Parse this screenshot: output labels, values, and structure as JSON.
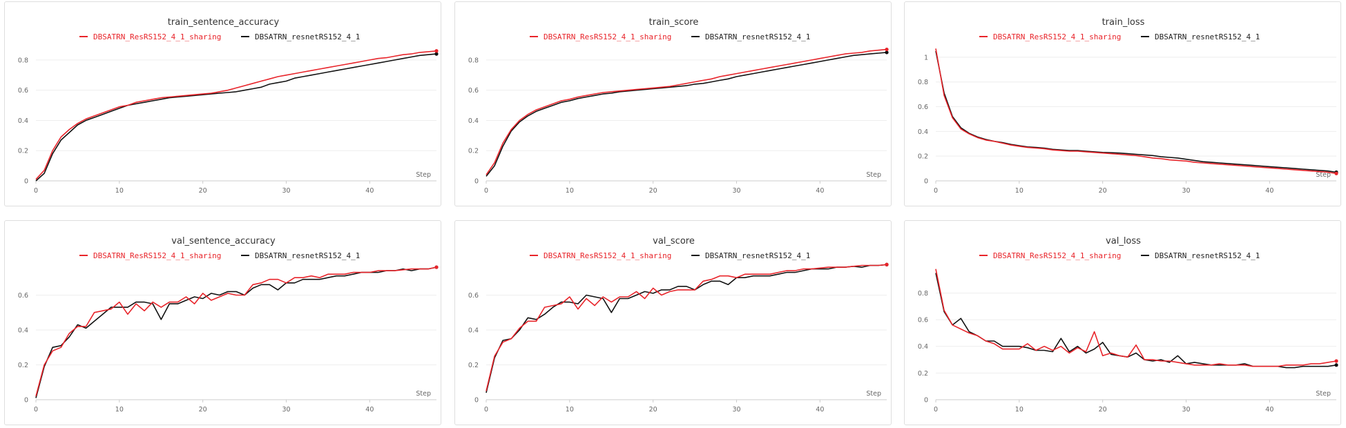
{
  "chart_data": [
    {
      "type": "line",
      "title": "train_sentence_accuracy",
      "xlabel": "Step",
      "xlim": [
        0,
        48
      ],
      "ylim": [
        0,
        0.9
      ],
      "xticks": [
        0,
        10,
        20,
        30,
        40
      ],
      "yticks": [
        0,
        0.2,
        0.4,
        0.6,
        0.8
      ],
      "grid": true,
      "legend": "top-center",
      "x": [
        0,
        1,
        2,
        3,
        4,
        5,
        6,
        7,
        8,
        9,
        10,
        11,
        12,
        13,
        14,
        15,
        16,
        17,
        18,
        19,
        20,
        21,
        22,
        23,
        24,
        25,
        26,
        27,
        28,
        29,
        30,
        31,
        32,
        33,
        34,
        35,
        36,
        37,
        38,
        39,
        40,
        41,
        42,
        43,
        44,
        45,
        46,
        47,
        48
      ],
      "series": [
        {
          "name": "DBSATRN_ResRS152_4_1_sharing",
          "color": "#e8242a",
          "values": [
            0.01,
            0.07,
            0.2,
            0.29,
            0.34,
            0.38,
            0.41,
            0.43,
            0.45,
            0.47,
            0.49,
            0.5,
            0.52,
            0.53,
            0.54,
            0.55,
            0.555,
            0.56,
            0.565,
            0.57,
            0.575,
            0.58,
            0.59,
            0.6,
            0.615,
            0.63,
            0.645,
            0.66,
            0.675,
            0.69,
            0.7,
            0.71,
            0.72,
            0.73,
            0.74,
            0.75,
            0.76,
            0.77,
            0.78,
            0.79,
            0.8,
            0.81,
            0.815,
            0.825,
            0.835,
            0.84,
            0.85,
            0.855,
            0.86
          ]
        },
        {
          "name": "DBSATRN_resnetRS152_4_1",
          "color": "#111111",
          "values": [
            0.0,
            0.05,
            0.18,
            0.27,
            0.32,
            0.37,
            0.4,
            0.42,
            0.44,
            0.46,
            0.48,
            0.5,
            0.51,
            0.52,
            0.53,
            0.54,
            0.55,
            0.555,
            0.56,
            0.565,
            0.57,
            0.575,
            0.58,
            0.585,
            0.59,
            0.6,
            0.61,
            0.62,
            0.64,
            0.65,
            0.66,
            0.68,
            0.69,
            0.7,
            0.71,
            0.72,
            0.73,
            0.74,
            0.75,
            0.76,
            0.77,
            0.78,
            0.79,
            0.8,
            0.81,
            0.82,
            0.83,
            0.835,
            0.84
          ]
        }
      ]
    },
    {
      "type": "line",
      "title": "train_score",
      "xlabel": "Step",
      "xlim": [
        0,
        48
      ],
      "ylim": [
        0,
        0.9
      ],
      "xticks": [
        0,
        10,
        20,
        30,
        40
      ],
      "yticks": [
        0,
        0.2,
        0.4,
        0.6,
        0.8
      ],
      "grid": true,
      "legend": "top-center",
      "x": [
        0,
        1,
        2,
        3,
        4,
        5,
        6,
        7,
        8,
        9,
        10,
        11,
        12,
        13,
        14,
        15,
        16,
        17,
        18,
        19,
        20,
        21,
        22,
        23,
        24,
        25,
        26,
        27,
        28,
        29,
        30,
        31,
        32,
        33,
        34,
        35,
        36,
        37,
        38,
        39,
        40,
        41,
        42,
        43,
        44,
        45,
        46,
        47,
        48
      ],
      "series": [
        {
          "name": "DBSATRN_ResRS152_4_1_sharing",
          "color": "#e8242a",
          "values": [
            0.04,
            0.12,
            0.25,
            0.34,
            0.4,
            0.44,
            0.47,
            0.49,
            0.51,
            0.53,
            0.54,
            0.555,
            0.565,
            0.575,
            0.585,
            0.59,
            0.595,
            0.6,
            0.605,
            0.61,
            0.615,
            0.62,
            0.625,
            0.635,
            0.645,
            0.655,
            0.665,
            0.675,
            0.69,
            0.7,
            0.71,
            0.72,
            0.73,
            0.74,
            0.75,
            0.76,
            0.77,
            0.78,
            0.79,
            0.8,
            0.81,
            0.82,
            0.83,
            0.84,
            0.845,
            0.85,
            0.86,
            0.865,
            0.87
          ]
        },
        {
          "name": "DBSATRN_resnetRS152_4_1",
          "color": "#111111",
          "values": [
            0.03,
            0.1,
            0.23,
            0.33,
            0.39,
            0.43,
            0.46,
            0.48,
            0.5,
            0.52,
            0.53,
            0.545,
            0.555,
            0.565,
            0.575,
            0.58,
            0.59,
            0.595,
            0.6,
            0.605,
            0.61,
            0.615,
            0.62,
            0.625,
            0.63,
            0.64,
            0.645,
            0.655,
            0.665,
            0.675,
            0.69,
            0.7,
            0.71,
            0.72,
            0.73,
            0.74,
            0.75,
            0.76,
            0.77,
            0.78,
            0.79,
            0.8,
            0.81,
            0.82,
            0.83,
            0.835,
            0.84,
            0.845,
            0.85
          ]
        }
      ]
    },
    {
      "type": "line",
      "title": "train_loss",
      "xlabel": "Step",
      "xlim": [
        0,
        48
      ],
      "ylim": [
        0,
        1.1
      ],
      "xticks": [
        0,
        10,
        20,
        30,
        40
      ],
      "yticks": [
        0,
        0.2,
        0.4,
        0.6,
        0.8,
        1
      ],
      "grid": true,
      "legend": "top-center",
      "x": [
        0,
        1,
        2,
        3,
        4,
        5,
        6,
        7,
        8,
        9,
        10,
        11,
        12,
        13,
        14,
        15,
        16,
        17,
        18,
        19,
        20,
        21,
        22,
        23,
        24,
        25,
        26,
        27,
        28,
        29,
        30,
        31,
        32,
        33,
        34,
        35,
        36,
        37,
        38,
        39,
        40,
        41,
        42,
        43,
        44,
        45,
        46,
        47,
        48
      ],
      "series": [
        {
          "name": "DBSATRN_ResRS152_4_1_sharing",
          "color": "#e8242a",
          "values": [
            1.07,
            0.69,
            0.51,
            0.42,
            0.38,
            0.35,
            0.33,
            0.32,
            0.305,
            0.29,
            0.28,
            0.27,
            0.265,
            0.26,
            0.25,
            0.245,
            0.24,
            0.24,
            0.235,
            0.23,
            0.225,
            0.22,
            0.215,
            0.21,
            0.205,
            0.195,
            0.185,
            0.18,
            0.17,
            0.165,
            0.16,
            0.15,
            0.145,
            0.14,
            0.135,
            0.13,
            0.125,
            0.12,
            0.115,
            0.11,
            0.105,
            0.1,
            0.095,
            0.09,
            0.085,
            0.08,
            0.075,
            0.07,
            0.06
          ]
        },
        {
          "name": "DBSATRN_resnetRS152_4_1",
          "color": "#111111",
          "values": [
            1.05,
            0.71,
            0.52,
            0.43,
            0.385,
            0.355,
            0.335,
            0.32,
            0.31,
            0.295,
            0.285,
            0.275,
            0.27,
            0.265,
            0.255,
            0.25,
            0.245,
            0.245,
            0.24,
            0.235,
            0.23,
            0.228,
            0.225,
            0.22,
            0.215,
            0.21,
            0.205,
            0.195,
            0.19,
            0.185,
            0.175,
            0.165,
            0.155,
            0.15,
            0.145,
            0.14,
            0.135,
            0.13,
            0.125,
            0.12,
            0.115,
            0.11,
            0.105,
            0.1,
            0.095,
            0.09,
            0.085,
            0.08,
            0.07
          ]
        }
      ]
    },
    {
      "type": "line",
      "title": "val_sentence_accuracy",
      "xlabel": "Step",
      "xlim": [
        0,
        48
      ],
      "ylim": [
        0,
        0.78
      ],
      "xticks": [
        0,
        10,
        20,
        30,
        40
      ],
      "yticks": [
        0,
        0.2,
        0.4,
        0.6
      ],
      "grid": true,
      "legend": "top-center",
      "x": [
        0,
        1,
        2,
        3,
        4,
        5,
        6,
        7,
        8,
        9,
        10,
        11,
        12,
        13,
        14,
        15,
        16,
        17,
        18,
        19,
        20,
        21,
        22,
        23,
        24,
        25,
        26,
        27,
        28,
        29,
        30,
        31,
        32,
        33,
        34,
        35,
        36,
        37,
        38,
        39,
        40,
        41,
        42,
        43,
        44,
        45,
        46,
        47,
        48
      ],
      "series": [
        {
          "name": "DBSATRN_ResRS152_4_1_sharing",
          "color": "#e8242a",
          "values": [
            0.02,
            0.2,
            0.28,
            0.3,
            0.38,
            0.42,
            0.42,
            0.5,
            0.51,
            0.52,
            0.56,
            0.49,
            0.55,
            0.51,
            0.56,
            0.53,
            0.56,
            0.56,
            0.59,
            0.55,
            0.61,
            0.57,
            0.59,
            0.61,
            0.6,
            0.6,
            0.66,
            0.67,
            0.69,
            0.69,
            0.67,
            0.7,
            0.7,
            0.71,
            0.7,
            0.72,
            0.72,
            0.72,
            0.73,
            0.73,
            0.73,
            0.74,
            0.74,
            0.74,
            0.745,
            0.75,
            0.75,
            0.75,
            0.76
          ]
        },
        {
          "name": "DBSATRN_resnetRS152_4_1",
          "color": "#111111",
          "values": [
            0.01,
            0.19,
            0.3,
            0.31,
            0.36,
            0.43,
            0.41,
            0.45,
            0.49,
            0.53,
            0.53,
            0.53,
            0.56,
            0.56,
            0.55,
            0.46,
            0.55,
            0.55,
            0.57,
            0.59,
            0.58,
            0.61,
            0.6,
            0.62,
            0.62,
            0.6,
            0.64,
            0.66,
            0.66,
            0.63,
            0.67,
            0.67,
            0.69,
            0.69,
            0.69,
            0.7,
            0.71,
            0.71,
            0.72,
            0.73,
            0.73,
            0.73,
            0.74,
            0.74,
            0.75,
            0.74,
            0.75,
            0.75,
            0.76
          ]
        }
      ]
    },
    {
      "type": "line",
      "title": "val_score",
      "xlabel": "Step",
      "xlim": [
        0,
        48
      ],
      "ylim": [
        0,
        0.78
      ],
      "xticks": [
        0,
        10,
        20,
        30,
        40
      ],
      "yticks": [
        0,
        0.2,
        0.4,
        0.6
      ],
      "grid": true,
      "legend": "top-center",
      "x": [
        0,
        1,
        2,
        3,
        4,
        5,
        6,
        7,
        8,
        9,
        10,
        11,
        12,
        13,
        14,
        15,
        16,
        17,
        18,
        19,
        20,
        21,
        22,
        23,
        24,
        25,
        26,
        27,
        28,
        29,
        30,
        31,
        32,
        33,
        34,
        35,
        36,
        37,
        38,
        39,
        40,
        41,
        42,
        43,
        44,
        45,
        46,
        47,
        48
      ],
      "series": [
        {
          "name": "DBSATRN_ResRS152_4_1_sharing",
          "color": "#e8242a",
          "values": [
            0.05,
            0.25,
            0.33,
            0.35,
            0.41,
            0.45,
            0.45,
            0.53,
            0.54,
            0.55,
            0.59,
            0.52,
            0.58,
            0.54,
            0.59,
            0.56,
            0.59,
            0.59,
            0.62,
            0.58,
            0.64,
            0.6,
            0.62,
            0.63,
            0.63,
            0.63,
            0.68,
            0.69,
            0.71,
            0.71,
            0.7,
            0.72,
            0.72,
            0.72,
            0.72,
            0.73,
            0.74,
            0.74,
            0.75,
            0.75,
            0.755,
            0.76,
            0.76,
            0.76,
            0.765,
            0.77,
            0.77,
            0.77,
            0.775
          ]
        },
        {
          "name": "DBSATRN_resnetRS152_4_1",
          "color": "#111111",
          "values": [
            0.04,
            0.24,
            0.34,
            0.35,
            0.4,
            0.47,
            0.46,
            0.49,
            0.53,
            0.56,
            0.56,
            0.55,
            0.6,
            0.59,
            0.58,
            0.5,
            0.58,
            0.58,
            0.6,
            0.62,
            0.61,
            0.63,
            0.63,
            0.65,
            0.65,
            0.63,
            0.66,
            0.68,
            0.68,
            0.66,
            0.7,
            0.7,
            0.71,
            0.71,
            0.71,
            0.72,
            0.73,
            0.73,
            0.74,
            0.75,
            0.75,
            0.75,
            0.76,
            0.76,
            0.765,
            0.76,
            0.77,
            0.77,
            0.775
          ]
        }
      ]
    },
    {
      "type": "line",
      "title": "val_loss",
      "xlabel": "Step",
      "xlim": [
        0,
        48
      ],
      "ylim": [
        0,
        1.02
      ],
      "xticks": [
        0,
        10,
        20,
        30,
        40
      ],
      "yticks": [
        0,
        0.2,
        0.4,
        0.6,
        0.8
      ],
      "grid": true,
      "legend": "top-center",
      "x": [
        0,
        1,
        2,
        3,
        4,
        5,
        6,
        7,
        8,
        9,
        10,
        11,
        12,
        13,
        14,
        15,
        16,
        17,
        18,
        19,
        20,
        21,
        22,
        23,
        24,
        25,
        26,
        27,
        28,
        29,
        30,
        31,
        32,
        33,
        34,
        35,
        36,
        37,
        38,
        39,
        40,
        41,
        42,
        43,
        44,
        45,
        46,
        47,
        48
      ],
      "series": [
        {
          "name": "DBSATRN_ResRS152_4_1_sharing",
          "color": "#e8242a",
          "values": [
            0.98,
            0.67,
            0.56,
            0.53,
            0.5,
            0.48,
            0.44,
            0.42,
            0.38,
            0.38,
            0.38,
            0.42,
            0.37,
            0.4,
            0.37,
            0.4,
            0.35,
            0.39,
            0.36,
            0.51,
            0.33,
            0.35,
            0.33,
            0.32,
            0.41,
            0.3,
            0.3,
            0.29,
            0.29,
            0.28,
            0.27,
            0.26,
            0.26,
            0.26,
            0.27,
            0.26,
            0.26,
            0.26,
            0.25,
            0.25,
            0.25,
            0.25,
            0.26,
            0.26,
            0.26,
            0.27,
            0.27,
            0.28,
            0.29
          ]
        },
        {
          "name": "DBSATRN_resnetRS152_4_1",
          "color": "#111111",
          "values": [
            0.95,
            0.66,
            0.56,
            0.61,
            0.51,
            0.48,
            0.44,
            0.44,
            0.4,
            0.4,
            0.4,
            0.39,
            0.37,
            0.37,
            0.36,
            0.46,
            0.36,
            0.4,
            0.35,
            0.38,
            0.43,
            0.34,
            0.33,
            0.32,
            0.35,
            0.3,
            0.29,
            0.3,
            0.28,
            0.33,
            0.27,
            0.28,
            0.27,
            0.26,
            0.26,
            0.26,
            0.26,
            0.27,
            0.25,
            0.25,
            0.25,
            0.25,
            0.24,
            0.24,
            0.25,
            0.25,
            0.25,
            0.25,
            0.26
          ]
        }
      ]
    }
  ]
}
